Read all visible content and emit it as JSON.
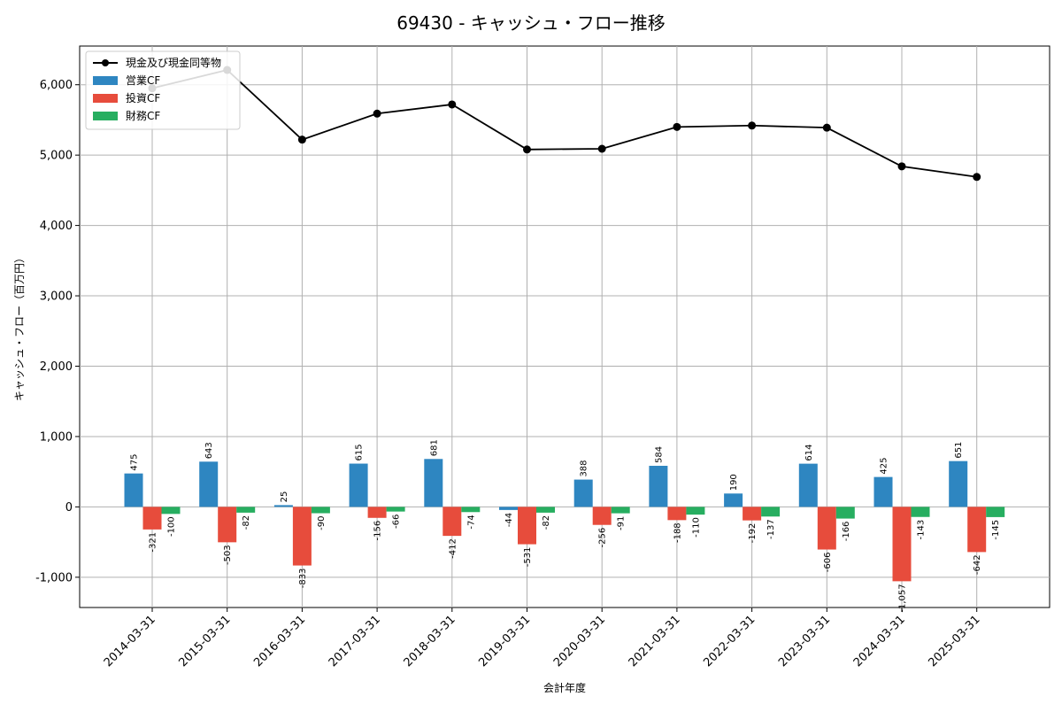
{
  "chart_data": {
    "type": "bar",
    "title": "69430 - キャッシュ・フロー推移",
    "xlabel": "会計年度",
    "ylabel": "キャッシュ・フロー（百万円）",
    "ylim": [
      -1430,
      6550
    ],
    "y_ticks": [
      -1000,
      0,
      1000,
      2000,
      3000,
      4000,
      5000,
      6000
    ],
    "y_tick_labels": [
      "-1,000",
      "0",
      "1,000",
      "2,000",
      "3,000",
      "4,000",
      "5,000",
      "6,000"
    ],
    "grid": true,
    "legend_position": "top-left",
    "categories": [
      "2014-03-31",
      "2015-03-31",
      "2016-03-31",
      "2017-03-31",
      "2018-03-31",
      "2019-03-31",
      "2020-03-31",
      "2021-03-31",
      "2022-03-31",
      "2023-03-31",
      "2024-03-31",
      "2025-03-31"
    ],
    "series": [
      {
        "name": "営業CF",
        "type": "bar",
        "color": "#2e86c1",
        "values": [
          475,
          643,
          25,
          615,
          681,
          -44,
          388,
          584,
          190,
          614,
          425,
          651
        ],
        "labels": [
          "475",
          "643",
          "25",
          "615",
          "681",
          "-44",
          "388",
          "584",
          "190",
          "614",
          "425",
          "651"
        ]
      },
      {
        "name": "投資CF",
        "type": "bar",
        "color": "#e74c3c",
        "values": [
          -321,
          -503,
          -833,
          -156,
          -412,
          -531,
          -256,
          -188,
          -192,
          -606,
          -1057,
          -642
        ],
        "labels": [
          "-321",
          "-503",
          "-833",
          "-156",
          "-412",
          "-531",
          "-256",
          "-188",
          "-192",
          "-606",
          "-1,057",
          "-642"
        ]
      },
      {
        "name": "財務CF",
        "type": "bar",
        "color": "#27ae60",
        "values": [
          -100,
          -82,
          -90,
          -66,
          -74,
          -82,
          -91,
          -110,
          -137,
          -166,
          -143,
          -145
        ],
        "labels": [
          "-100",
          "-82",
          "-90",
          "-66",
          "-74",
          "-82",
          "-91",
          "-110",
          "-137",
          "-166",
          "-143",
          "-145"
        ]
      }
    ],
    "line_series": {
      "name": "現金及び現金同等物",
      "type": "line",
      "color": "#000000",
      "values": [
        5950,
        6210,
        5220,
        5590,
        5720,
        5080,
        5090,
        5400,
        5420,
        5390,
        4840,
        4690
      ]
    }
  }
}
